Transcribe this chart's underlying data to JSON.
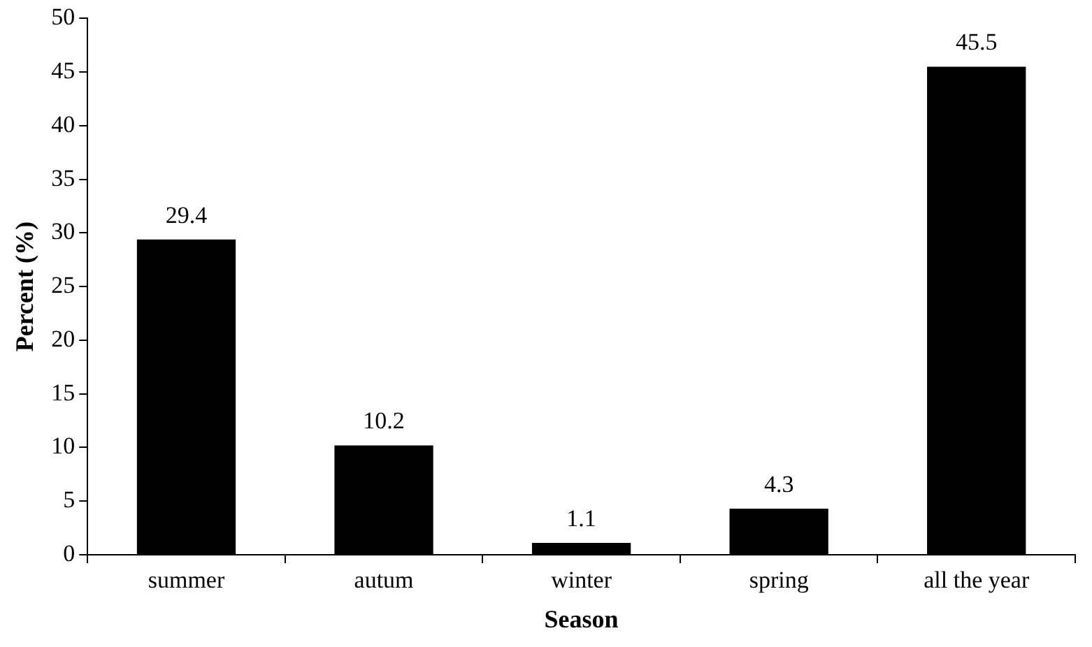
{
  "chart_data": {
    "type": "bar",
    "xlabel": "Season",
    "ylabel": "Percent (%)",
    "categories": [
      "summer",
      "autum",
      "winter",
      "spring",
      "all the year"
    ],
    "values": [
      29.4,
      10.2,
      1.1,
      4.3,
      45.5
    ],
    "color": "#000000",
    "ylim": [
      0,
      50
    ],
    "yticks": [
      0,
      5,
      10,
      15,
      20,
      25,
      30,
      35,
      40,
      45,
      50
    ],
    "grid": false,
    "data_labels": true
  }
}
